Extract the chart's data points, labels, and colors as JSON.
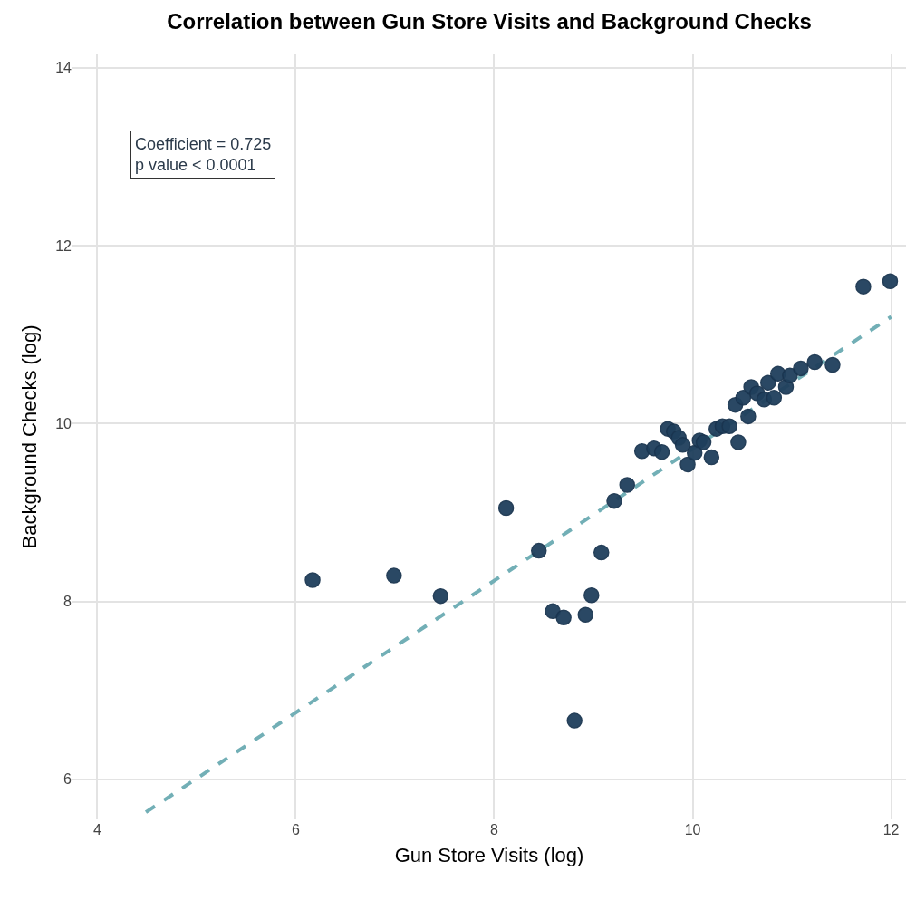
{
  "chart_data": {
    "type": "scatter",
    "title": "Correlation between Gun Store Visits and Background Checks",
    "xlabel": "Gun Store Visits (log)",
    "ylabel": "Background Checks (log)",
    "annotations": [
      "Coefficient = 0.725\np value < 0.0001"
    ],
    "xlim": [
      3.75,
      12.15
    ],
    "ylim": [
      5.55,
      14.15
    ],
    "xticks": [
      4,
      6,
      8,
      10,
      12
    ],
    "yticks": [
      6,
      8,
      10,
      12,
      14
    ],
    "grid": true,
    "series": [
      {
        "type": "scatter",
        "color": "#1f3f5c",
        "marker": "circle",
        "x": [
          6.17,
          6.99,
          7.46,
          8.12,
          8.45,
          8.59,
          8.7,
          8.92,
          8.98,
          8.81,
          9.08,
          9.21,
          9.34,
          9.49,
          9.61,
          9.69,
          9.75,
          9.81,
          9.86,
          9.9,
          9.95,
          10.02,
          10.07,
          10.11,
          10.19,
          10.24,
          10.3,
          10.37,
          10.43,
          10.46,
          10.51,
          10.56,
          10.59,
          10.65,
          10.72,
          10.76,
          10.82,
          10.86,
          10.94,
          10.98,
          11.09,
          11.23,
          11.41,
          11.72,
          11.99
        ],
        "values": [
          8.24,
          8.29,
          8.06,
          9.05,
          8.57,
          7.89,
          7.82,
          7.85,
          8.07,
          6.66,
          8.55,
          9.13,
          9.31,
          9.69,
          9.72,
          9.68,
          9.94,
          9.91,
          9.84,
          9.76,
          9.54,
          9.67,
          9.81,
          9.79,
          9.62,
          9.94,
          9.97,
          9.97,
          10.21,
          9.79,
          10.29,
          10.08,
          10.41,
          10.34,
          10.27,
          10.46,
          10.29,
          10.56,
          10.41,
          10.54,
          10.62,
          10.69,
          10.66,
          11.54,
          11.6
        ]
      },
      {
        "type": "line",
        "color": "#72afb6",
        "line_style": "dashed",
        "marker": "none",
        "x": [
          4.49,
          12.0
        ],
        "values": [
          5.63,
          11.2
        ]
      }
    ]
  }
}
